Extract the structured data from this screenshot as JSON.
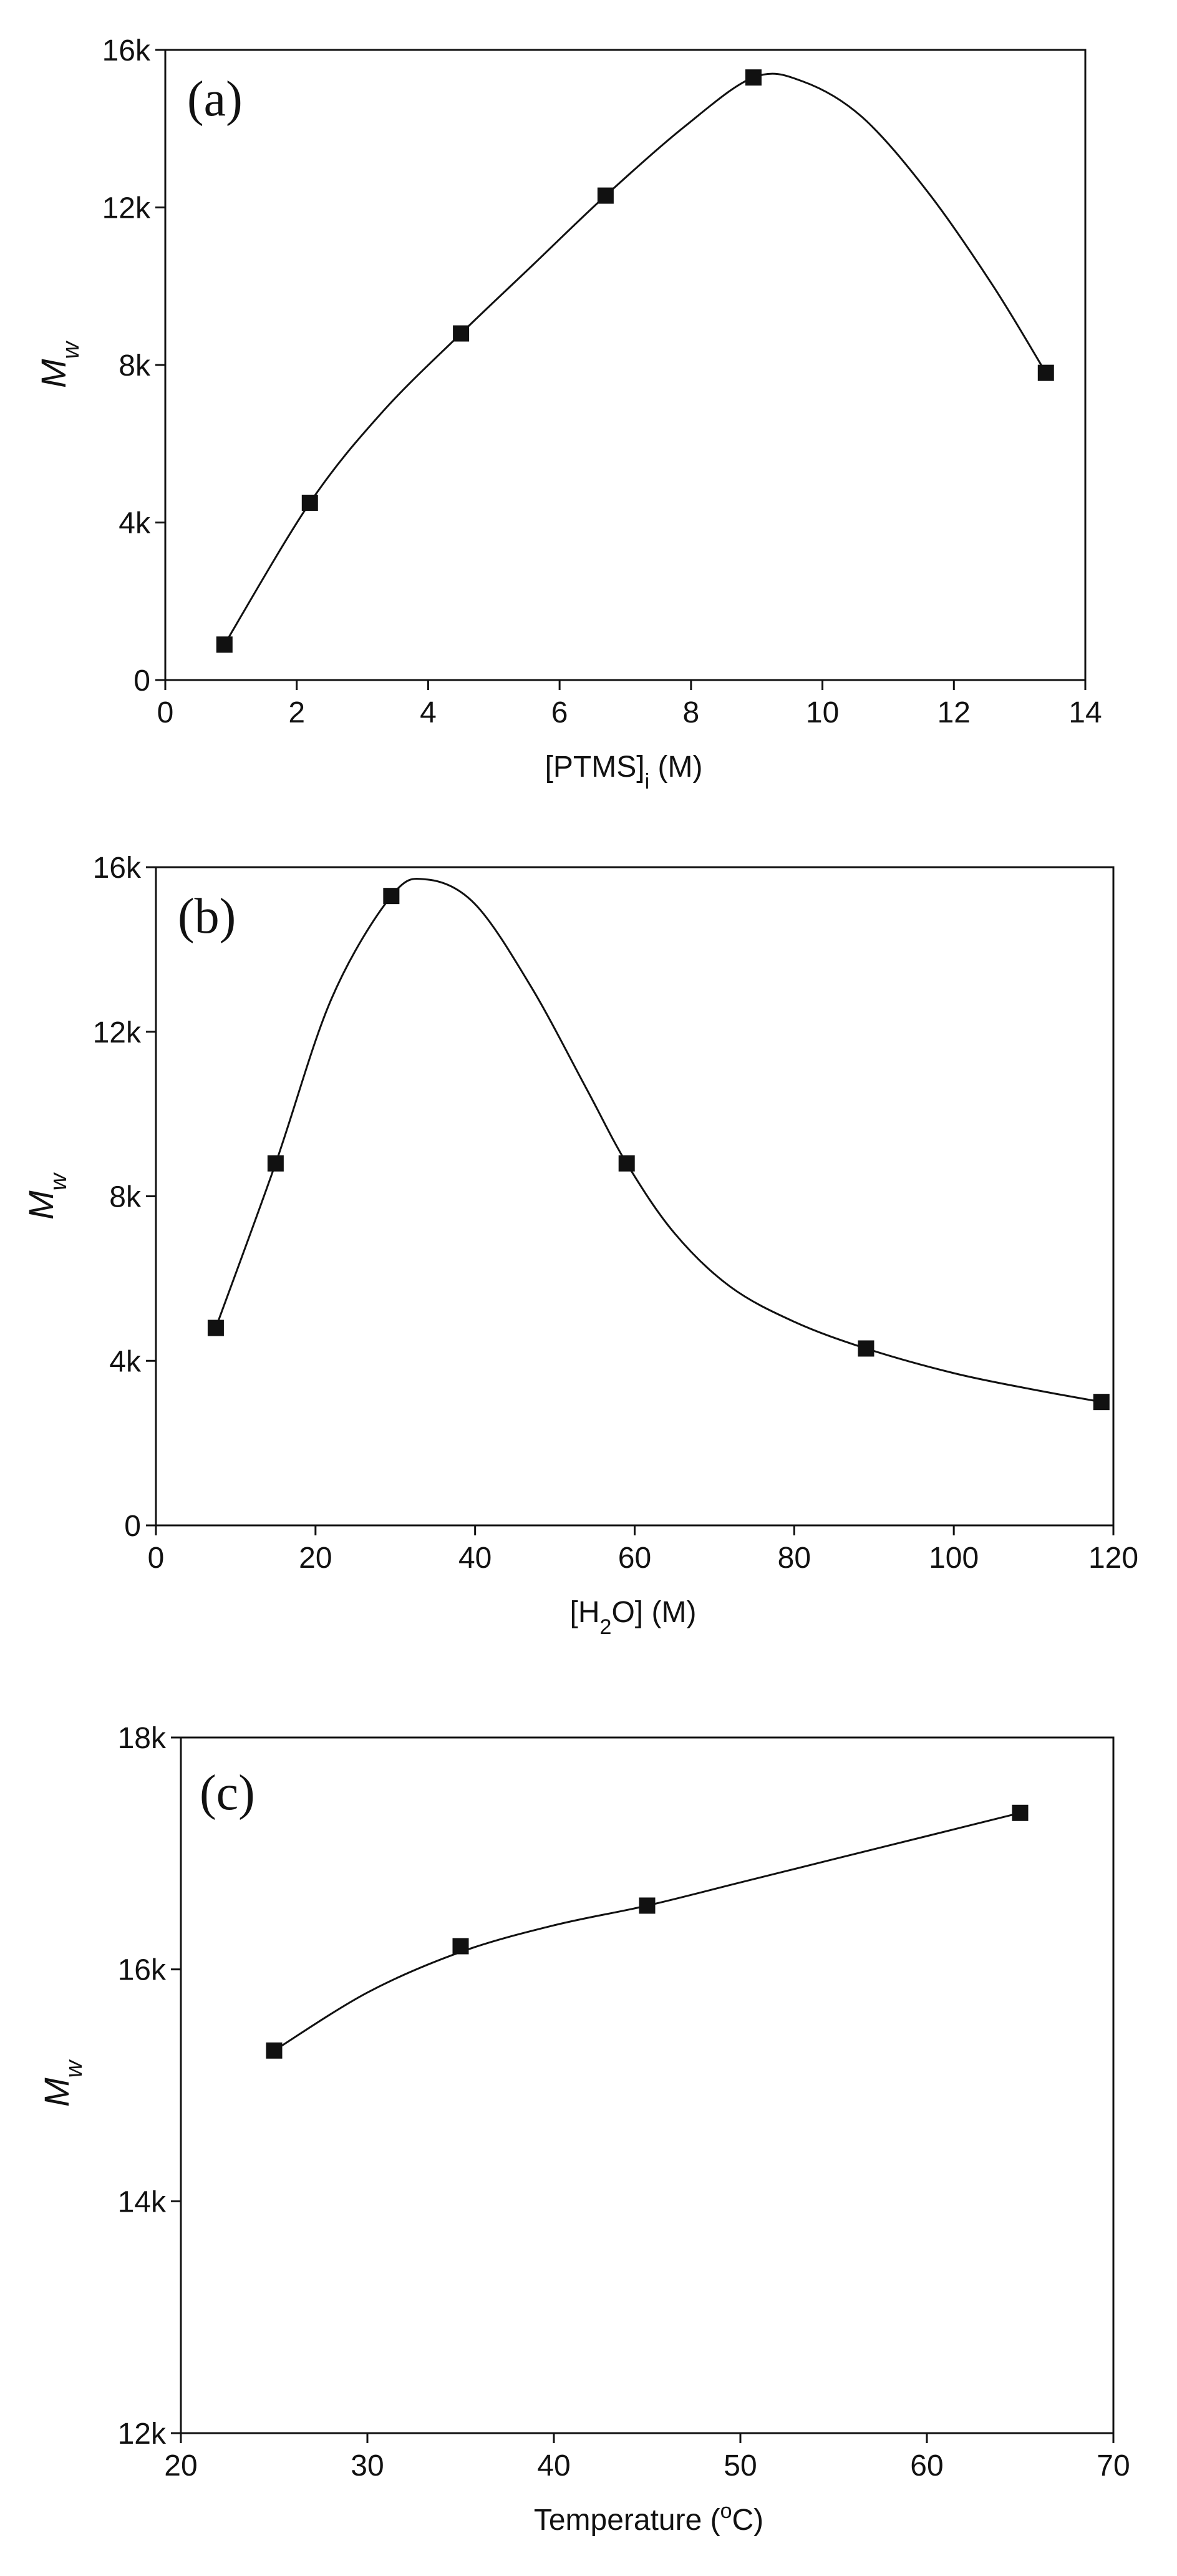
{
  "chart_data": [
    {
      "type": "line",
      "panel_label": "(a)",
      "xlabel": "[PTMS]",
      "xlabel_sub": "i",
      "xlabel_tail": " (M)",
      "ylabel": "M",
      "ylabel_sub": "w",
      "xlim": [
        0,
        14
      ],
      "ylim": [
        0,
        16000
      ],
      "x_ticks": [
        0,
        2,
        4,
        6,
        8,
        10,
        12,
        14
      ],
      "x_tick_labels": [
        "0",
        "2",
        "4",
        "6",
        "8",
        "10",
        "12",
        "14"
      ],
      "y_ticks": [
        0,
        4000,
        8000,
        12000,
        16000
      ],
      "y_tick_labels": [
        "0",
        "4k",
        "8k",
        "12k",
        "16k"
      ],
      "points": [
        [
          0.9,
          900
        ],
        [
          2.2,
          4500
        ],
        [
          4.5,
          8800
        ],
        [
          6.7,
          12300
        ],
        [
          8.95,
          15300
        ],
        [
          13.4,
          7800
        ]
      ],
      "curve": [
        [
          0.9,
          900
        ],
        [
          2.2,
          4500
        ],
        [
          3.3,
          6800
        ],
        [
          4.5,
          8800
        ],
        [
          5.6,
          10550
        ],
        [
          6.7,
          12300
        ],
        [
          7.9,
          14050
        ],
        [
          8.95,
          15300
        ],
        [
          9.7,
          15200
        ],
        [
          10.6,
          14300
        ],
        [
          11.6,
          12400
        ],
        [
          12.6,
          10000
        ],
        [
          13.4,
          7800
        ]
      ],
      "grid": false,
      "color": "#111111"
    },
    {
      "type": "line",
      "panel_label": "(b)",
      "xlabel": "[H",
      "xlabel_sub": "2",
      "xlabel_tail": "O] (M)",
      "ylabel": "M",
      "ylabel_sub": "w",
      "xlim": [
        0,
        120
      ],
      "ylim": [
        0,
        16000
      ],
      "x_ticks": [
        0,
        20,
        40,
        60,
        80,
        100,
        120
      ],
      "x_tick_labels": [
        "0",
        "20",
        "40",
        "60",
        "80",
        "100",
        "120"
      ],
      "y_ticks": [
        0,
        4000,
        8000,
        12000,
        16000
      ],
      "y_tick_labels": [
        "0",
        "4k",
        "8k",
        "12k",
        "16k"
      ],
      "points": [
        [
          7.5,
          4800
        ],
        [
          15,
          8800
        ],
        [
          29.5,
          15300
        ],
        [
          59,
          8800
        ],
        [
          89,
          4300
        ],
        [
          118.5,
          3000
        ]
      ],
      "curve": [
        [
          7.5,
          4800
        ],
        [
          15,
          8800
        ],
        [
          22,
          12800
        ],
        [
          29.5,
          15300
        ],
        [
          34,
          15700
        ],
        [
          40,
          15100
        ],
        [
          47,
          13100
        ],
        [
          54,
          10600
        ],
        [
          59,
          8800
        ],
        [
          65,
          7100
        ],
        [
          72,
          5800
        ],
        [
          80,
          4950
        ],
        [
          89,
          4300
        ],
        [
          100,
          3700
        ],
        [
          110,
          3300
        ],
        [
          118.5,
          3000
        ]
      ],
      "grid": false,
      "color": "#111111"
    },
    {
      "type": "line",
      "panel_label": "(c)",
      "xlabel": "Temperature (",
      "xlabel_sup": "o",
      "xlabel_tail": "C)",
      "ylabel": "M",
      "ylabel_sub": "w",
      "xlim": [
        20,
        70
      ],
      "ylim": [
        12000,
        18000
      ],
      "x_ticks": [
        20,
        30,
        40,
        50,
        60,
        70
      ],
      "x_tick_labels": [
        "20",
        "30",
        "40",
        "50",
        "60",
        "70"
      ],
      "y_ticks": [
        12000,
        14000,
        16000,
        18000
      ],
      "y_tick_labels": [
        "12k",
        "14k",
        "16k",
        "18k"
      ],
      "points": [
        [
          25,
          15300
        ],
        [
          35,
          16200
        ],
        [
          45,
          16550
        ],
        [
          65,
          17350
        ]
      ],
      "curve": [
        [
          25,
          15300
        ],
        [
          30,
          15800
        ],
        [
          35,
          16150
        ],
        [
          40,
          16380
        ],
        [
          45,
          16550
        ],
        [
          50,
          16750
        ],
        [
          55,
          16950
        ],
        [
          60,
          17150
        ],
        [
          65,
          17350
        ]
      ],
      "grid": false,
      "color": "#111111"
    }
  ]
}
